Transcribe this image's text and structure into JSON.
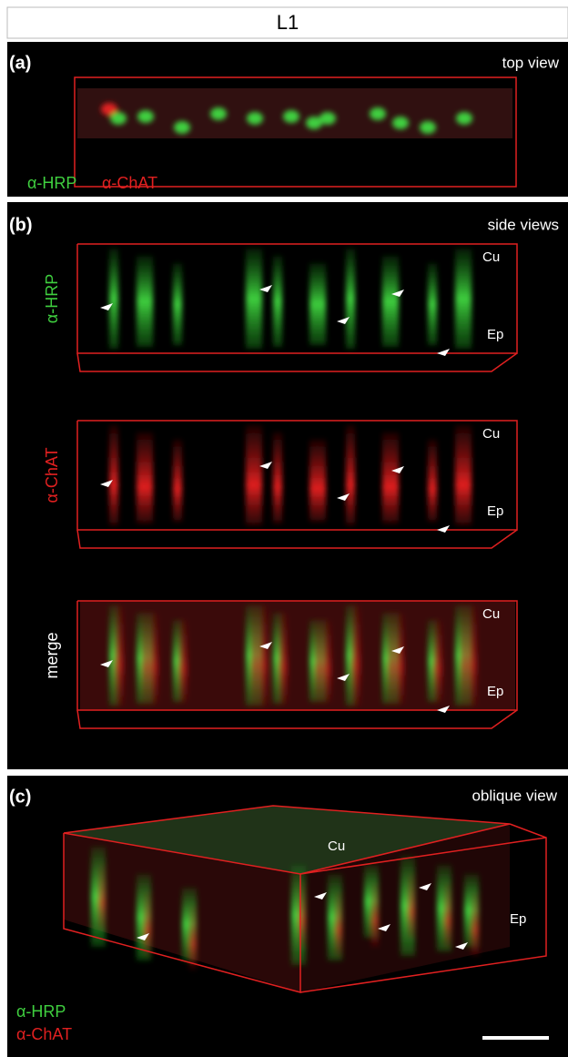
{
  "header": {
    "title": "L1"
  },
  "panels": [
    {
      "label": "(a)",
      "view": "top view",
      "stains": [
        "α-HRP",
        "α-ChAT"
      ]
    },
    {
      "label": "(b)",
      "view": "side views",
      "subpanels": [
        {
          "channel": "α-HRP",
          "top": "Cu",
          "bottom": "Ep"
        },
        {
          "channel": "α-ChAT",
          "top": "Cu",
          "bottom": "Ep"
        },
        {
          "channel": "merge",
          "top": "Cu",
          "bottom": "Ep"
        }
      ]
    },
    {
      "label": "(c)",
      "view": "oblique view",
      "top": "Cu",
      "bottom": "Ep",
      "stains": [
        "α-HRP",
        "α-ChAT"
      ]
    }
  ]
}
